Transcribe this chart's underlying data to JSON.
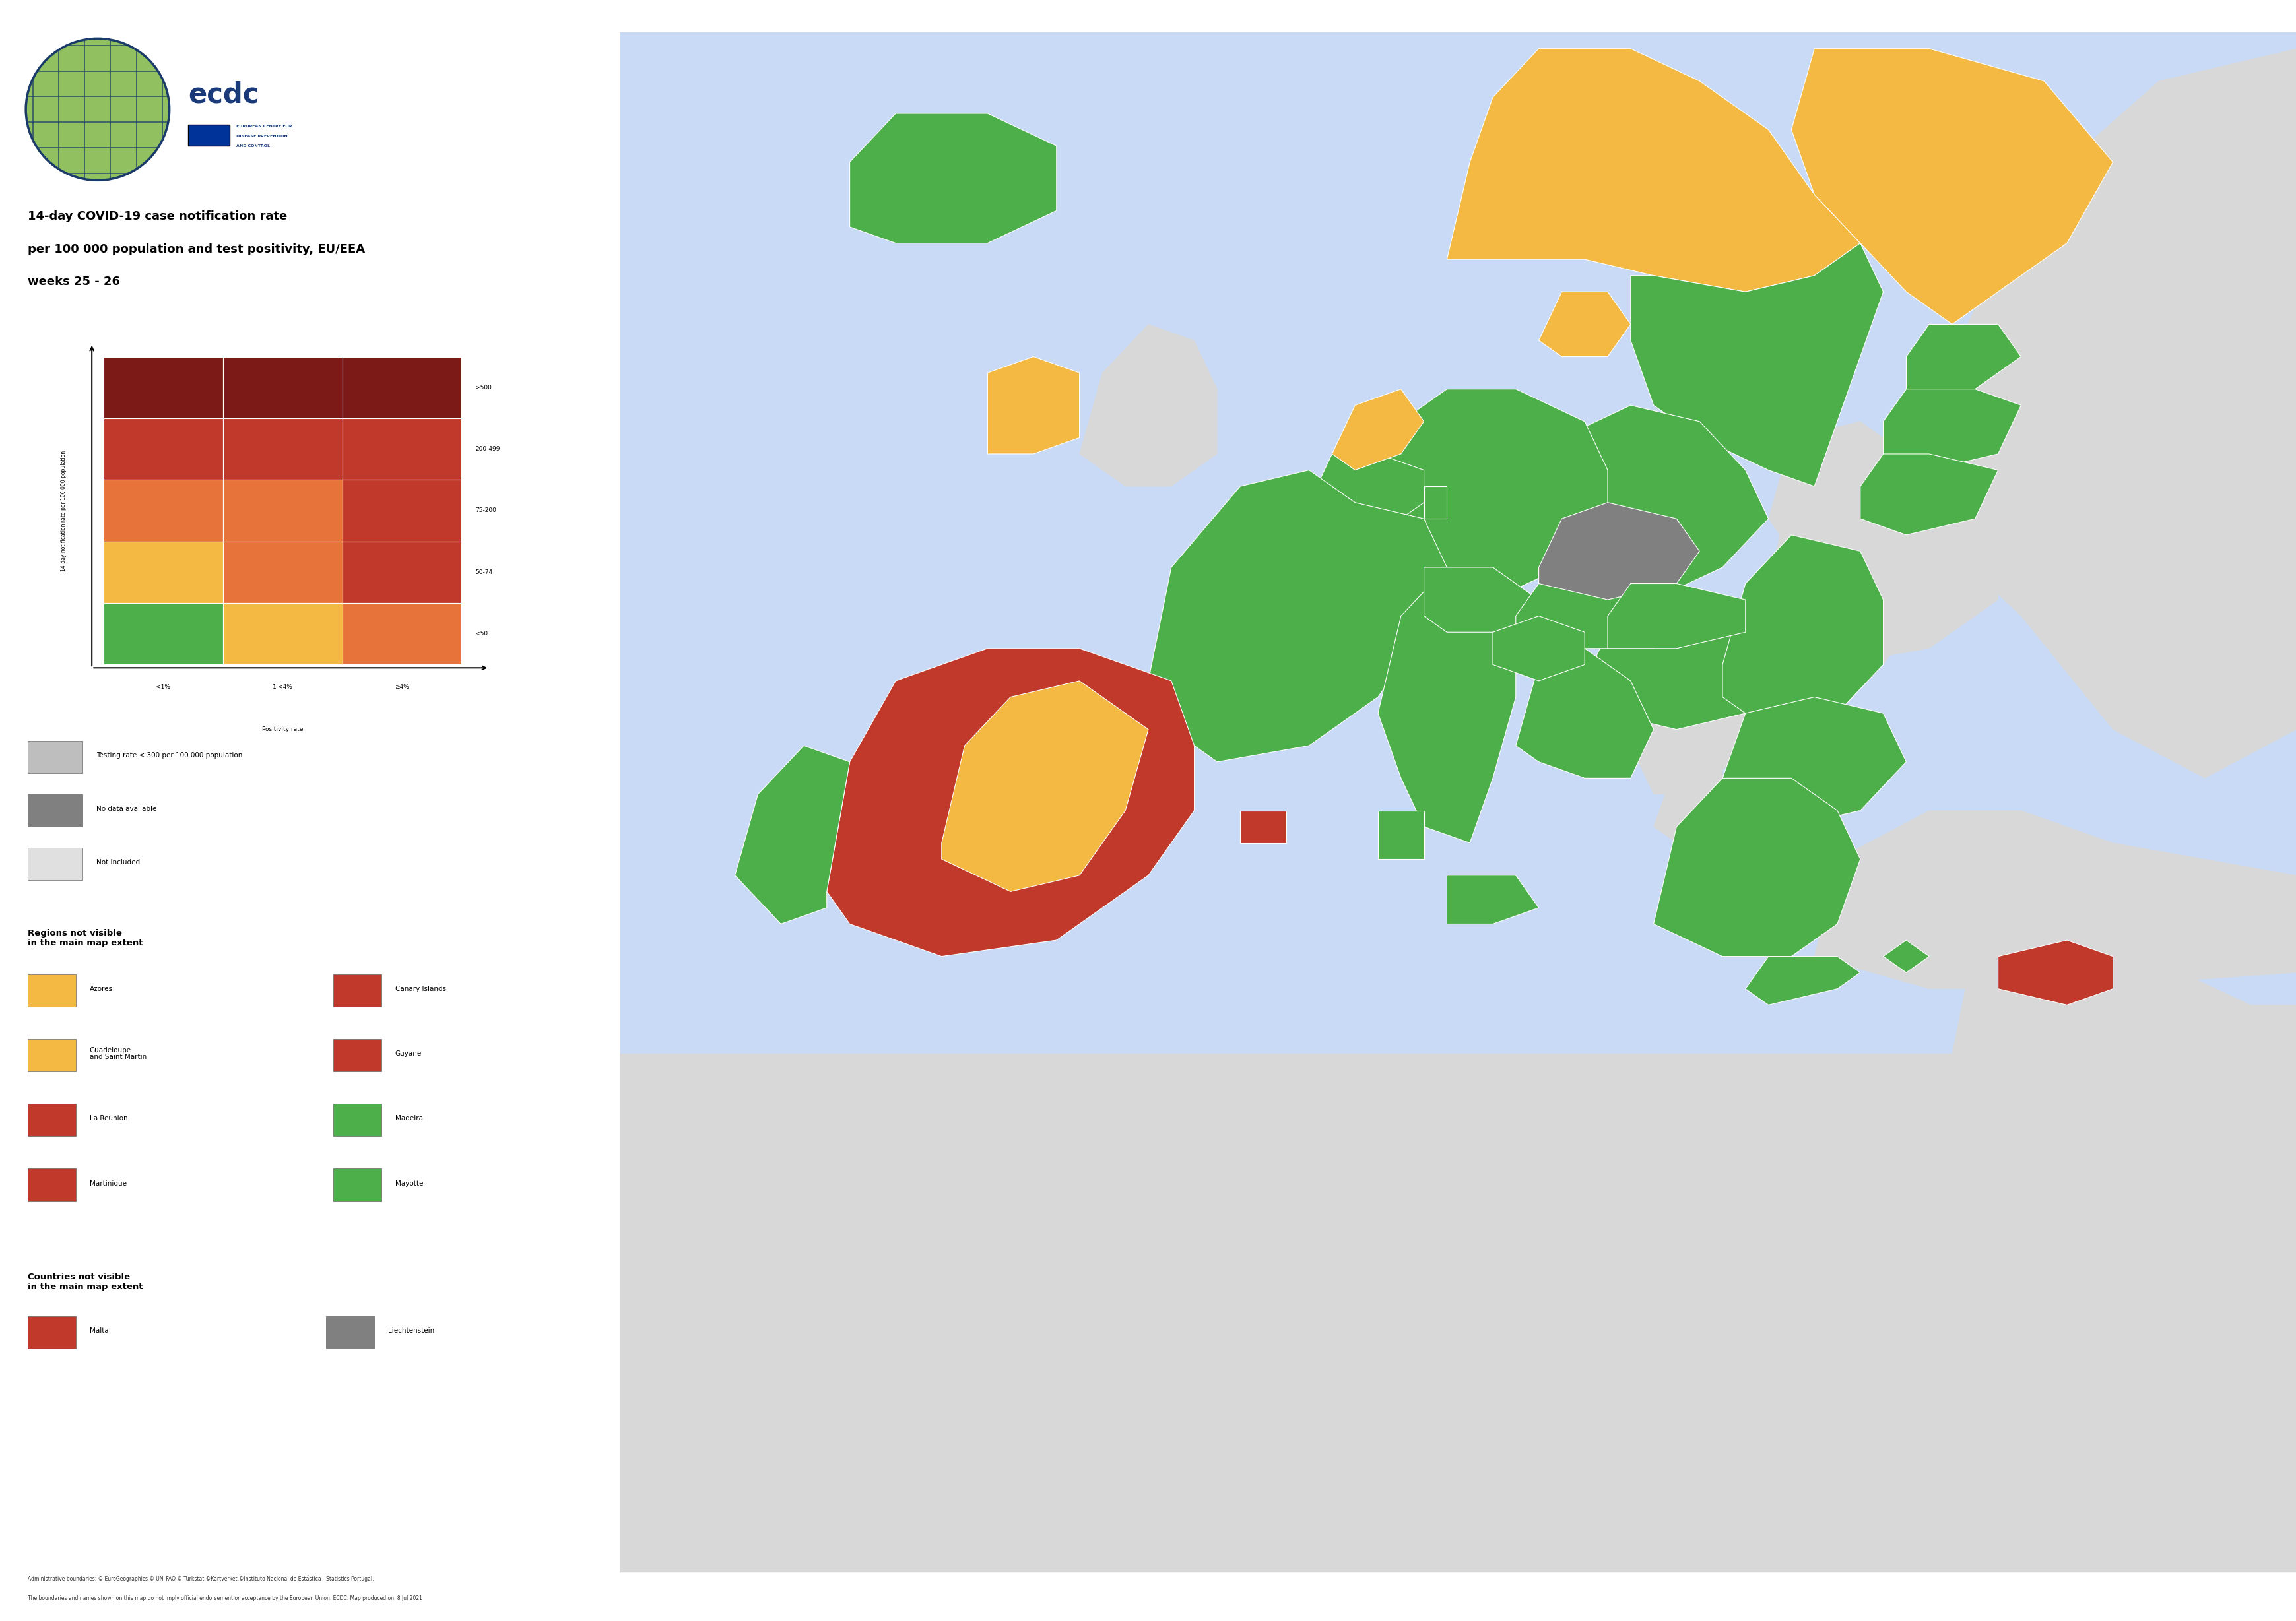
{
  "title_line1": "14-day COVID-19 case notification rate",
  "title_line2": "per 100 000 population and test positivity, EU/EEA",
  "title_line3": "weeks 25 - 26",
  "matrix_colors": [
    [
      "#7b1a17",
      "#7b1a17",
      "#7b1a17"
    ],
    [
      "#c0392b",
      "#c0392b",
      "#c0392b"
    ],
    [
      "#e8733a",
      "#e8733a",
      "#c0392b"
    ],
    [
      "#f4b942",
      "#e8733a",
      "#c0392b"
    ],
    [
      "#4daf4a",
      "#f4b942",
      "#e8733a"
    ]
  ],
  "row_labels": [
    ">500",
    "200-499",
    "75-200",
    "50-74",
    "<50"
  ],
  "col_labels": [
    "<1%",
    "1-<4%",
    "≥4%"
  ],
  "ylabel": "14-day notification rate per 100 000 population",
  "xlabel": "Positivity rate",
  "legend_items": [
    {
      "color": "#bebebe",
      "label": "Testing rate < 300 per 100 000 population"
    },
    {
      "color": "#808080",
      "label": "No data available"
    },
    {
      "color": "#e0e0e0",
      "label": "Not included"
    }
  ],
  "regions_not_visible_title": "Regions not visible\nin the main map extent",
  "regions": [
    {
      "color": "#f4b942",
      "label": "Azores"
    },
    {
      "color": "#c0392b",
      "label": "Canary Islands"
    },
    {
      "color": "#f4b942",
      "label": "Guadeloupe\nand Saint Martin"
    },
    {
      "color": "#c0392b",
      "label": "Guyane"
    },
    {
      "color": "#c0392b",
      "label": "La Reunion"
    },
    {
      "color": "#4daf4a",
      "label": "Madeira"
    },
    {
      "color": "#c0392b",
      "label": "Martinique"
    },
    {
      "color": "#4daf4a",
      "label": "Mayotte"
    }
  ],
  "countries_not_visible_title": "Countries not visible\nin the main map extent",
  "countries": [
    {
      "color": "#c0392b",
      "label": "Malta"
    },
    {
      "color": "#808080",
      "label": "Liechtenstein"
    }
  ],
  "footnote1": "Administrative boundaries: © EuroGeographics © UN–FAO © Turkstat.©Kartverket.©Instituto Nacional de Estástica - Statistics Portugal.",
  "footnote2": "The boundaries and names shown on this map do not imply official endorsement or acceptance by the European Union. ECDC. Map produced on: 8 Jul 2021",
  "bg_color": "#ffffff",
  "ocean_color": "#c8daf5",
  "map_land_default": "#4daf4a",
  "map_orange": "#f4b942",
  "map_dark_red": "#c0392b",
  "map_gray": "#808080",
  "map_light_gray": "#bebebe",
  "map_outside": "#d8d8d8"
}
